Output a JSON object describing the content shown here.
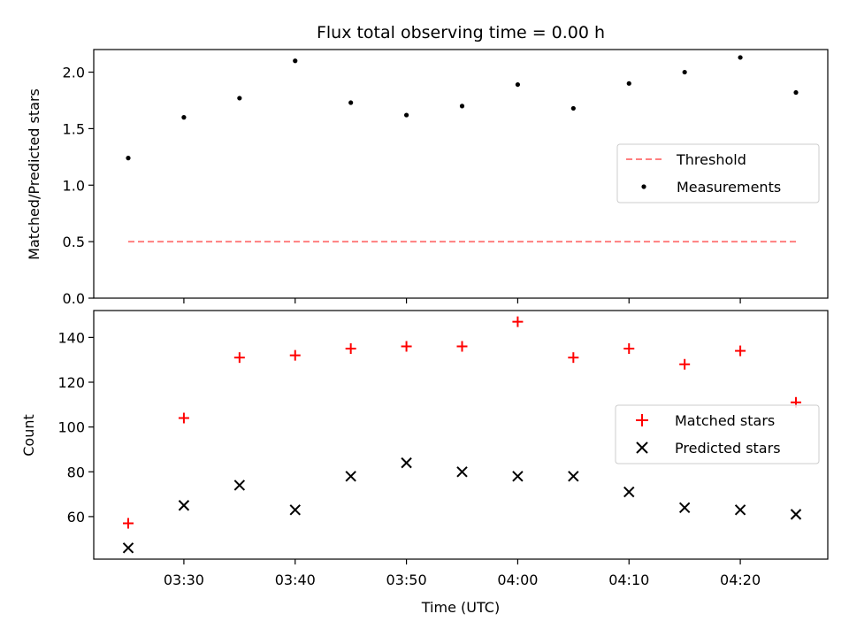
{
  "figure": {
    "title": "Flux total observing time = 0.00 h"
  },
  "chart_data": [
    {
      "type": "scatter",
      "panel": "top",
      "title": "Flux total observing time = 0.00 h",
      "xlabel": "",
      "ylabel": "Matched/Predicted stars",
      "ylim": [
        0.0,
        2.2
      ],
      "yticks": [
        0.0,
        0.5,
        1.0,
        1.5,
        2.0
      ],
      "ytick_labels": [
        "0.0",
        "0.5",
        "1.0",
        "1.5",
        "2.0"
      ],
      "grid": false,
      "legend_position": "center-right",
      "x": [
        "03:25",
        "03:30",
        "03:35",
        "03:40",
        "03:45",
        "03:50",
        "03:55",
        "04:00",
        "04:05",
        "04:10",
        "04:15",
        "04:20",
        "04:25"
      ],
      "series": [
        {
          "name": "Threshold",
          "kind": "line",
          "style": "dashed",
          "color": "#ff7f7f",
          "values": [
            0.5,
            0.5,
            0.5,
            0.5,
            0.5,
            0.5,
            0.5,
            0.5,
            0.5,
            0.5,
            0.5,
            0.5,
            0.5
          ]
        },
        {
          "name": "Measurements",
          "kind": "scatter",
          "marker": "dot",
          "color": "#000000",
          "values": [
            1.24,
            1.6,
            1.77,
            2.1,
            1.73,
            1.62,
            1.7,
            1.89,
            1.68,
            1.9,
            2.0,
            2.13,
            1.82
          ]
        }
      ]
    },
    {
      "type": "scatter",
      "panel": "bottom",
      "title": "",
      "xlabel": "Time (UTC)",
      "ylabel": "Count",
      "ylim": [
        41,
        152
      ],
      "yticks": [
        60,
        80,
        100,
        120,
        140
      ],
      "ytick_labels": [
        "60",
        "80",
        "100",
        "120",
        "140"
      ],
      "xtick_labels": [
        "03:30",
        "03:40",
        "03:50",
        "04:00",
        "04:10",
        "04:20"
      ],
      "grid": false,
      "legend_position": "center-right",
      "x": [
        "03:25",
        "03:30",
        "03:35",
        "03:40",
        "03:45",
        "03:50",
        "03:55",
        "04:00",
        "04:05",
        "04:10",
        "04:15",
        "04:20",
        "04:25"
      ],
      "series": [
        {
          "name": "Matched stars",
          "kind": "scatter",
          "marker": "plus",
          "color": "#ff0000",
          "values": [
            57,
            104,
            131,
            132,
            135,
            136,
            136,
            147,
            131,
            135,
            128,
            134,
            111
          ]
        },
        {
          "name": "Predicted stars",
          "kind": "scatter",
          "marker": "x",
          "color": "#000000",
          "values": [
            46,
            65,
            74,
            63,
            78,
            84,
            80,
            78,
            78,
            71,
            64,
            63,
            61
          ]
        }
      ]
    }
  ]
}
